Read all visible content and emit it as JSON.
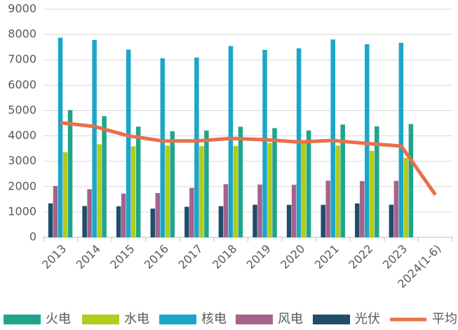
{
  "chart_data": {
    "type": "bar",
    "categories": [
      "2013",
      "2014",
      "2015",
      "2016",
      "2017",
      "2018",
      "2019",
      "2020",
      "2021",
      "2022",
      "2023",
      "2024(1-6)"
    ],
    "series": [
      {
        "name": "火电",
        "color": "#1fa58c",
        "values": [
          5021,
          4778,
          4364,
          4186,
          4209,
          4361,
          4307,
          4216,
          4448,
          4379,
          4466,
          null
        ]
      },
      {
        "name": "水电",
        "color": "#b3cb1a",
        "values": [
          3359,
          3669,
          3590,
          3619,
          3597,
          3607,
          3726,
          3827,
          3622,
          3412,
          3133,
          null
        ]
      },
      {
        "name": "核电",
        "color": "#1ba6c8",
        "values": [
          7874,
          7787,
          7403,
          7060,
          7089,
          7543,
          7394,
          7453,
          7802,
          7616,
          7670,
          null
        ]
      },
      {
        "name": "风电",
        "color": "#a6628c",
        "values": [
          2025,
          1900,
          1724,
          1745,
          1949,
          2095,
          2082,
          2073,
          2232,
          2218,
          2225,
          null
        ]
      },
      {
        "name": "光伏",
        "color": "#1f4d6c",
        "values": [
          1340,
          1235,
          1224,
          1133,
          1204,
          1230,
          1285,
          1281,
          1281,
          1337,
          1286,
          null
        ]
      },
      {
        "name": "平均",
        "color": "#e8704b",
        "type": "line",
        "values": [
          4520,
          4370,
          4000,
          3800,
          3800,
          3900,
          3850,
          3760,
          3820,
          3700,
          3600,
          1680
        ]
      }
    ],
    "ylim": [
      0,
      9000
    ],
    "yticks": [
      0,
      1000,
      2000,
      3000,
      4000,
      5000,
      6000,
      7000,
      8000,
      9000
    ],
    "grid": true,
    "legend": "bottom"
  }
}
